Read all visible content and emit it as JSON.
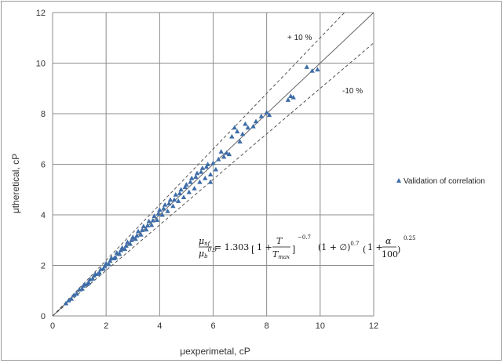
{
  "chart_data": {
    "type": "scatter",
    "title": "",
    "xlabel": "μexperimetal, cP",
    "ylabel": "μtheretical, cP",
    "xlim": [
      0,
      12
    ],
    "ylim": [
      0,
      12
    ],
    "x_ticks": [
      "0",
      "2",
      "4",
      "6",
      "8",
      "10",
      "12"
    ],
    "y_ticks": [
      "0",
      "2",
      "4",
      "6",
      "8",
      "10",
      "12"
    ],
    "grid": true,
    "legend": {
      "position": "right",
      "entries": [
        "Validation of correlation"
      ]
    },
    "marker_color": "#3e6da8",
    "reference_lines": [
      {
        "name": "y = x",
        "slope": 1.0,
        "style": "solid"
      },
      {
        "name": "+ 10 %",
        "slope": 1.1,
        "style": "dashed"
      },
      {
        "name": "-10 %",
        "slope": 0.9,
        "style": "dashed"
      }
    ],
    "band_labels": {
      "upper": "+ 10 %",
      "lower": "-10 %"
    },
    "annotation_equation": "μnf / μb^0.9 = 1.303 [1 + T/Tmax]^-0.7 (1 + ∅)^0.7 (1 + α/100)^0.25",
    "series": [
      {
        "name": "Validation of correlation",
        "marker": "triangle",
        "points": [
          [
            0.5,
            0.5
          ],
          [
            0.6,
            0.62
          ],
          [
            0.7,
            0.68
          ],
          [
            0.8,
            0.83
          ],
          [
            0.9,
            0.88
          ],
          [
            1.0,
            1.05
          ],
          [
            1.1,
            1.08
          ],
          [
            1.2,
            1.25
          ],
          [
            1.3,
            1.27
          ],
          [
            1.4,
            1.45
          ],
          [
            1.5,
            1.48
          ],
          [
            1.6,
            1.66
          ],
          [
            1.7,
            1.67
          ],
          [
            1.8,
            1.85
          ],
          [
            1.9,
            1.87
          ],
          [
            2.0,
            2.08
          ],
          [
            2.1,
            2.05
          ],
          [
            2.2,
            2.3
          ],
          [
            2.3,
            2.28
          ],
          [
            2.4,
            2.5
          ],
          [
            2.5,
            2.45
          ],
          [
            2.6,
            2.7
          ],
          [
            2.7,
            2.65
          ],
          [
            2.8,
            2.92
          ],
          [
            2.9,
            2.85
          ],
          [
            3.0,
            3.12
          ],
          [
            3.1,
            3.05
          ],
          [
            3.2,
            3.35
          ],
          [
            3.3,
            3.22
          ],
          [
            3.4,
            3.55
          ],
          [
            3.5,
            3.42
          ],
          [
            3.6,
            3.75
          ],
          [
            3.7,
            3.6
          ],
          [
            3.8,
            3.95
          ],
          [
            3.9,
            3.8
          ],
          [
            4.0,
            4.2
          ],
          [
            4.1,
            4.0
          ],
          [
            4.2,
            4.4
          ],
          [
            4.3,
            4.15
          ],
          [
            4.4,
            4.6
          ],
          [
            4.5,
            4.35
          ],
          [
            4.6,
            4.8
          ],
          [
            4.7,
            4.55
          ],
          [
            4.8,
            5.0
          ],
          [
            4.9,
            4.7
          ],
          [
            5.0,
            5.2
          ],
          [
            5.1,
            4.9
          ],
          [
            5.2,
            5.45
          ],
          [
            5.3,
            5.05
          ],
          [
            5.4,
            5.65
          ],
          [
            5.5,
            5.3
          ],
          [
            5.6,
            5.85
          ],
          [
            5.7,
            5.45
          ],
          [
            5.8,
            6.0
          ],
          [
            5.9,
            5.6
          ],
          [
            6.0,
            6.05
          ],
          [
            6.1,
            5.8
          ],
          [
            6.3,
            6.5
          ],
          [
            6.5,
            6.45
          ],
          [
            6.7,
            7.1
          ],
          [
            6.8,
            7.45
          ],
          [
            6.9,
            7.3
          ],
          [
            7.0,
            6.9
          ],
          [
            7.1,
            7.2
          ],
          [
            7.3,
            7.45
          ],
          [
            7.5,
            7.5
          ],
          [
            7.8,
            7.9
          ],
          [
            8.0,
            8.05
          ],
          [
            8.1,
            7.95
          ],
          [
            8.8,
            8.55
          ],
          [
            8.9,
            8.7
          ],
          [
            9.0,
            8.65
          ],
          [
            9.5,
            9.85
          ],
          [
            9.7,
            9.7
          ],
          [
            9.9,
            9.75
          ],
          [
            1.15,
            1.2
          ],
          [
            1.35,
            1.32
          ],
          [
            1.55,
            1.6
          ],
          [
            1.75,
            1.72
          ],
          [
            1.95,
            1.98
          ],
          [
            2.15,
            2.18
          ],
          [
            2.35,
            2.32
          ],
          [
            2.55,
            2.6
          ],
          [
            2.75,
            2.78
          ],
          [
            2.95,
            3.0
          ],
          [
            3.15,
            3.18
          ],
          [
            3.35,
            3.4
          ],
          [
            3.55,
            3.58
          ],
          [
            3.75,
            3.78
          ],
          [
            3.95,
            4.05
          ],
          [
            4.15,
            4.25
          ],
          [
            4.35,
            4.45
          ],
          [
            4.55,
            4.6
          ],
          [
            4.75,
            4.85
          ],
          [
            4.95,
            5.1
          ],
          [
            5.15,
            5.3
          ],
          [
            5.35,
            5.5
          ],
          [
            5.55,
            5.7
          ],
          [
            5.75,
            5.9
          ],
          [
            6.2,
            6.2
          ],
          [
            6.4,
            6.3
          ],
          [
            6.6,
            6.4
          ],
          [
            7.2,
            7.6
          ],
          [
            7.6,
            7.7
          ],
          [
            5.9,
            5.3
          ]
        ]
      }
    ]
  }
}
